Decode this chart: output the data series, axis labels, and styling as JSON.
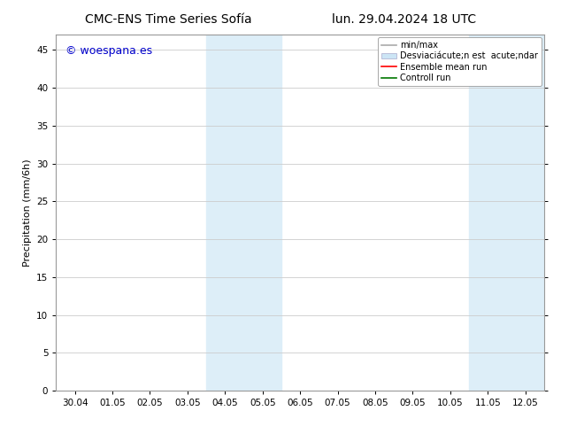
{
  "title_left": "CMC-ENS Time Series Sofía",
  "title_right": "lun. 29.04.2024 18 UTC",
  "ylabel": "Precipitation (mm/6h)",
  "watermark": "© woespana.es",
  "watermark_color": "#0000cc",
  "ylim": [
    0,
    47
  ],
  "yticks": [
    0,
    5,
    10,
    15,
    20,
    25,
    30,
    35,
    40,
    45
  ],
  "xtick_labels": [
    "30.04",
    "01.05",
    "02.05",
    "03.05",
    "04.05",
    "05.05",
    "06.05",
    "07.05",
    "08.05",
    "09.05",
    "10.05",
    "11.05",
    "12.05"
  ],
  "xtick_positions": [
    0,
    1,
    2,
    3,
    4,
    5,
    6,
    7,
    8,
    9,
    10,
    11,
    12
  ],
  "shade_bands": [
    {
      "xstart": 3.5,
      "xend": 5.5,
      "color": "#ddeef8"
    },
    {
      "xstart": 10.5,
      "xend": 12.5,
      "color": "#ddeef8"
    }
  ],
  "bg_color": "#ffffff",
  "plot_bg_color": "#ffffff",
  "grid_color": "#cccccc",
  "title_fontsize": 10,
  "tick_fontsize": 7.5,
  "ylabel_fontsize": 8,
  "watermark_fontsize": 9,
  "legend_fontsize": 7
}
